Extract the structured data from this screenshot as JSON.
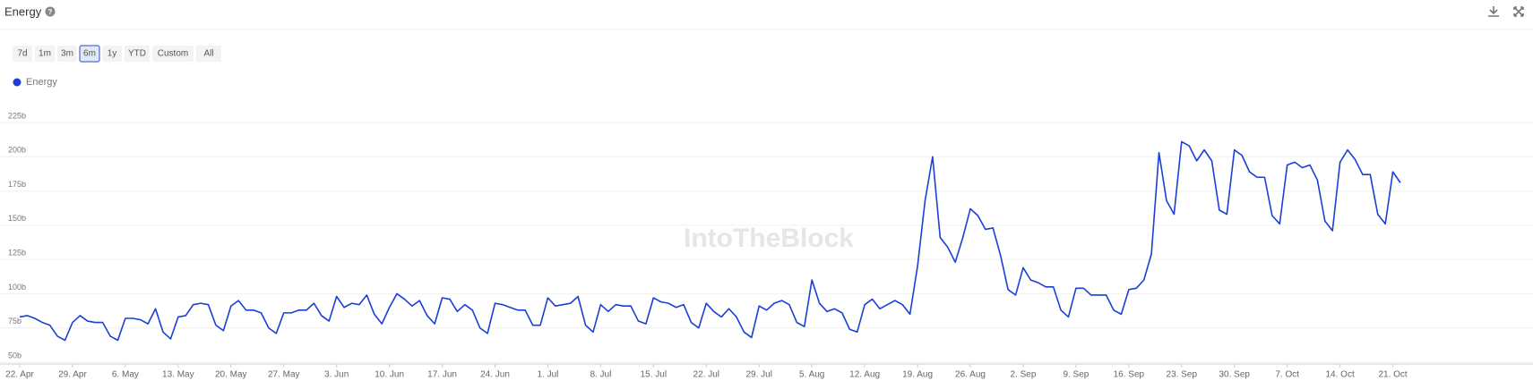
{
  "header": {
    "title": "Energy"
  },
  "range_buttons": [
    "7d",
    "1m",
    "3m",
    "6m",
    "1y",
    "YTD",
    "Custom",
    "All"
  ],
  "selected_range": 3,
  "chart_data": {
    "type": "line",
    "watermark": "IntoTheBlock",
    "categories": [
      "22. Apr",
      null,
      null,
      null,
      null,
      null,
      null,
      "29. Apr",
      null,
      null,
      null,
      null,
      null,
      null,
      "6. May",
      null,
      null,
      null,
      null,
      null,
      null,
      "13. May",
      null,
      null,
      null,
      null,
      null,
      null,
      "20. May",
      null,
      null,
      null,
      null,
      null,
      null,
      "27. May",
      null,
      null,
      null,
      null,
      null,
      null,
      "3. Jun",
      null,
      null,
      null,
      null,
      null,
      null,
      "10. Jun",
      null,
      null,
      null,
      null,
      null,
      null,
      "17. Jun",
      null,
      null,
      null,
      null,
      null,
      null,
      "24. Jun",
      null,
      null,
      null,
      null,
      null,
      null,
      "1. Jul",
      null,
      null,
      null,
      null,
      null,
      null,
      "8. Jul",
      null,
      null,
      null,
      null,
      null,
      null,
      "15. Jul",
      null,
      null,
      null,
      null,
      null,
      null,
      "22. Jul",
      null,
      null,
      null,
      null,
      null,
      null,
      "29. Jul",
      null,
      null,
      null,
      null,
      null,
      null,
      "5. Aug",
      null,
      null,
      null,
      null,
      null,
      null,
      "12. Aug",
      null,
      null,
      null,
      null,
      null,
      null,
      "19. Aug",
      null,
      null,
      null,
      null,
      null,
      null,
      "26. Aug",
      null,
      null,
      null,
      null,
      null,
      null,
      "2. Sep",
      null,
      null,
      null,
      null,
      null,
      null,
      "9. Sep",
      null,
      null,
      null,
      null,
      null,
      null,
      "16. Sep",
      null,
      null,
      null,
      null,
      null,
      null,
      "23. Sep",
      null,
      null,
      null,
      null,
      null,
      null,
      "30. Sep",
      null,
      null,
      null,
      null,
      null,
      null,
      "7. Oct",
      null,
      null,
      null,
      null,
      null,
      null,
      "14. Oct",
      null,
      null,
      null,
      null,
      null,
      null,
      "21. Oct",
      null
    ],
    "series": [
      {
        "name": "Energy",
        "color": "#1a3fd6",
        "values": [
          83,
          84,
          82,
          79,
          77,
          69,
          66,
          79,
          84,
          80,
          79,
          79,
          69,
          66,
          82,
          82,
          81,
          78,
          89,
          72,
          67,
          83,
          84,
          92,
          93,
          92,
          77,
          73,
          91,
          95,
          88,
          88,
          86,
          75,
          71,
          86,
          86,
          88,
          88,
          93,
          84,
          80,
          98,
          90,
          93,
          92,
          99,
          85,
          78,
          90,
          100,
          96,
          91,
          95,
          84,
          78,
          97,
          96,
          87,
          92,
          88,
          75,
          71,
          93,
          92,
          90,
          88,
          88,
          77,
          77,
          97,
          91,
          92,
          93,
          98,
          77,
          72,
          92,
          87,
          92,
          91,
          91,
          80,
          78,
          97,
          94,
          93,
          90,
          92,
          79,
          75,
          93,
          87,
          83,
          89,
          83,
          72,
          68,
          91,
          88,
          93,
          95,
          92,
          79,
          76,
          110,
          93,
          87,
          89,
          86,
          74,
          72,
          92,
          96,
          89,
          92,
          95,
          92,
          85,
          120,
          168,
          200,
          141,
          134,
          123,
          141,
          162,
          157,
          147,
          148,
          128,
          103,
          99,
          119,
          110,
          108,
          105,
          105,
          88,
          83,
          104,
          104,
          99,
          99,
          99,
          88,
          85,
          103,
          104,
          110,
          129,
          203,
          168,
          158,
          211,
          208,
          197,
          205,
          197,
          161,
          158,
          205,
          201,
          189,
          185,
          185,
          157,
          151,
          194,
          196,
          192,
          194,
          183,
          153,
          146,
          196,
          205,
          198,
          187,
          187,
          158,
          151,
          189,
          181
        ]
      }
    ],
    "ylim": [
      50,
      225
    ],
    "yticks": [
      {
        "value": 50,
        "label": "50b"
      },
      {
        "value": 75,
        "label": "75b"
      },
      {
        "value": 100,
        "label": "100b"
      },
      {
        "value": 125,
        "label": "125b"
      },
      {
        "value": 150,
        "label": "150b"
      },
      {
        "value": 175,
        "label": "175b"
      },
      {
        "value": 200,
        "label": "200b"
      },
      {
        "value": 225,
        "label": "225b"
      }
    ],
    "grid": true
  }
}
